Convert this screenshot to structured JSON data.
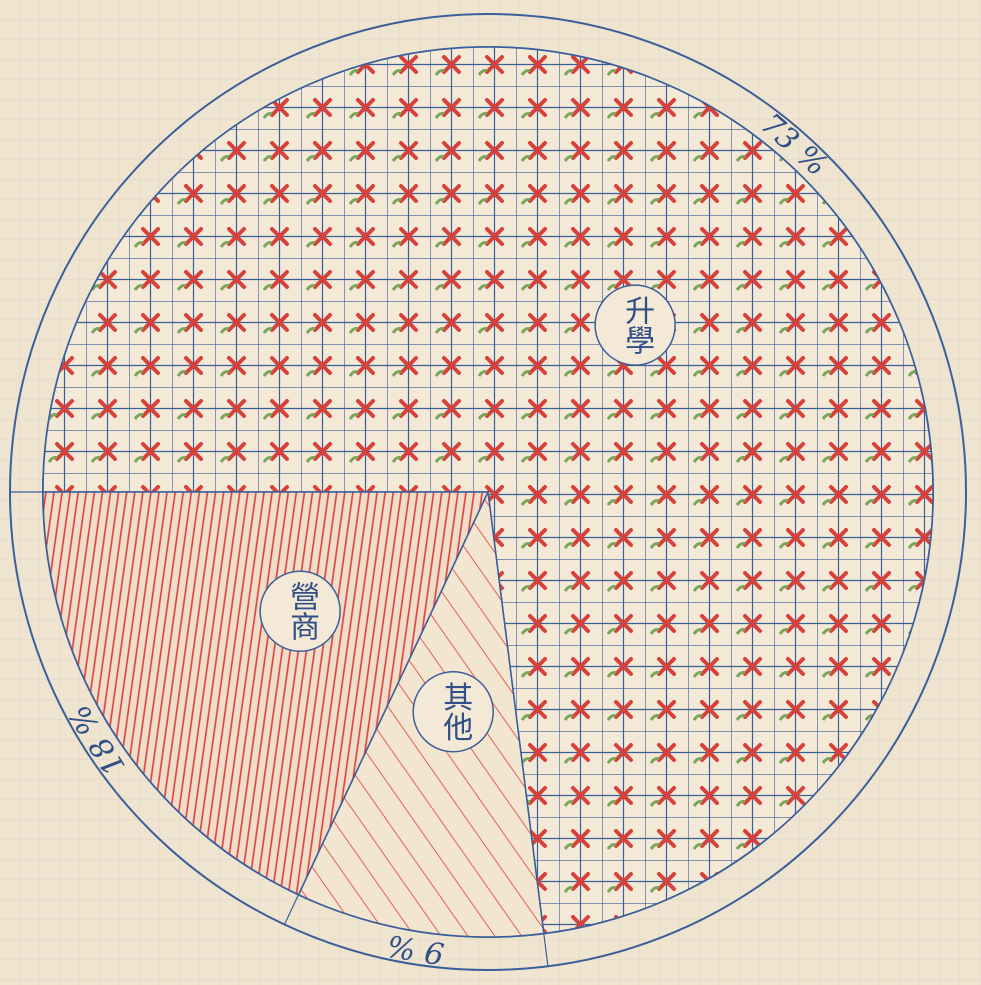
{
  "chart_data": {
    "type": "pie",
    "categories": [
      "升學",
      "其他",
      "營商"
    ],
    "values": [
      73,
      9,
      18
    ],
    "value_labels": [
      "73 %",
      "9 %",
      "18 %"
    ],
    "colors": [
      "#d8403a",
      "#d8403a",
      "#d8403a"
    ]
  }
}
